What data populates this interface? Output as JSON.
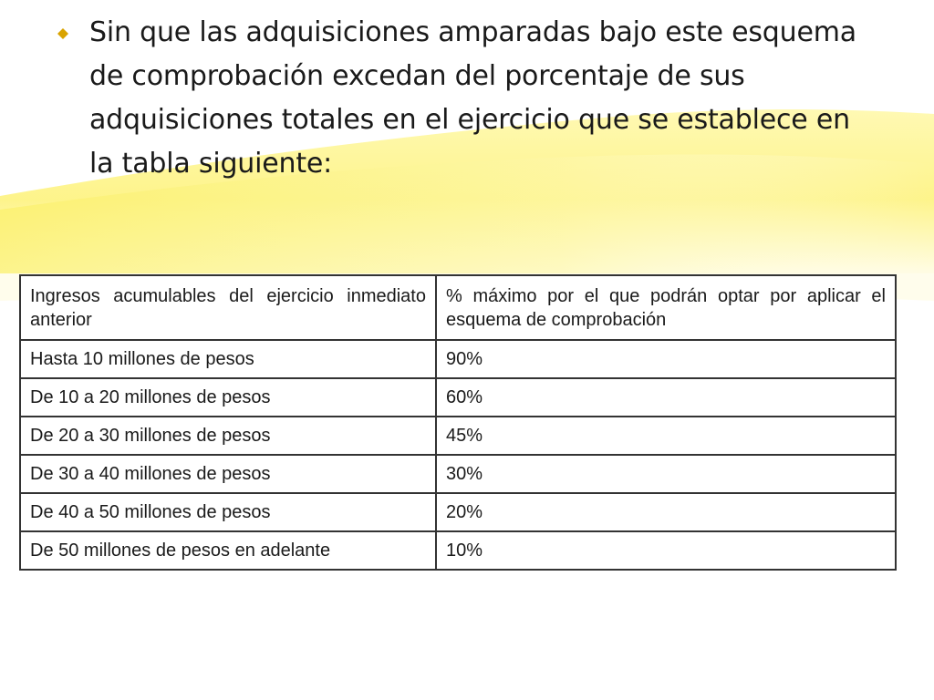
{
  "slide": {
    "bullet_text": "Sin que las adquisiciones amparadas bajo este esquema de comprobación excedan del porcentaje de sus adquisiciones totales en el ejercicio que se establece en la tabla siguiente:",
    "bullet_color": "#d9a300"
  },
  "table": {
    "headers": [
      "Ingresos acumulables del ejercicio inmediato anterior",
      "% máximo por el que podrán optar por aplicar el esquema de comprobación"
    ],
    "rows": [
      [
        "Hasta 10 millones de pesos",
        "90%"
      ],
      [
        "De 10 a 20 millones de pesos",
        "60%"
      ],
      [
        "De 20 a 30 millones de pesos",
        "45%"
      ],
      [
        "De 30 a 40 millones de pesos",
        "30%"
      ],
      [
        "De 40 a 50 millones de pesos",
        "20%"
      ],
      [
        "De 50 millones de pesos en adelante",
        "10%"
      ]
    ]
  },
  "theme": {
    "wave_color": "#fbf28a",
    "background": "#ffffff"
  }
}
